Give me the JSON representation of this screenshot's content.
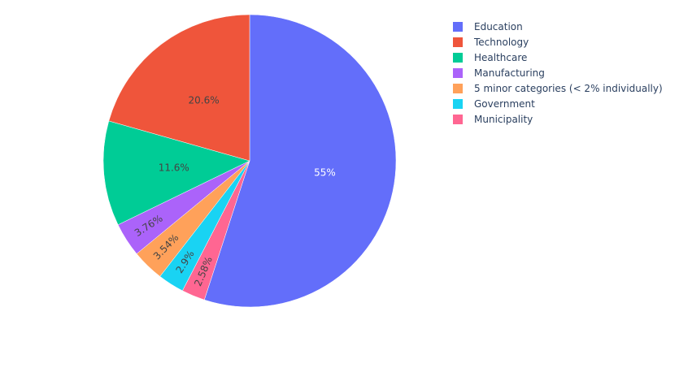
{
  "chart_data": {
    "type": "pie",
    "direction": "clockwise",
    "start": "top",
    "legend_position": "top-right",
    "slices": [
      {
        "label": "Education",
        "value": 55,
        "text": "55%",
        "color": "#636efa"
      },
      {
        "label": "Municipality",
        "value": 2.58,
        "text": "2.58%",
        "color": "#ff6692"
      },
      {
        "label": "Government",
        "value": 2.9,
        "text": "2.9%",
        "color": "#19d3f3"
      },
      {
        "label": "5 minor categories (< 2% individually)",
        "value": 3.54,
        "text": "3.54%",
        "color": "#ffa15a"
      },
      {
        "label": "Manufacturing",
        "value": 3.76,
        "text": "3.76%",
        "color": "#ab63fa"
      },
      {
        "label": "Healthcare",
        "value": 11.6,
        "text": "11.6%",
        "color": "#00cc96"
      },
      {
        "label": "Technology",
        "value": 20.6,
        "text": "20.6%",
        "color": "#ef553b"
      }
    ],
    "legend": [
      "Education",
      "Technology",
      "Healthcare",
      "Manufacturing",
      "5 minor categories (< 2% individually)",
      "Government",
      "Municipality"
    ]
  }
}
